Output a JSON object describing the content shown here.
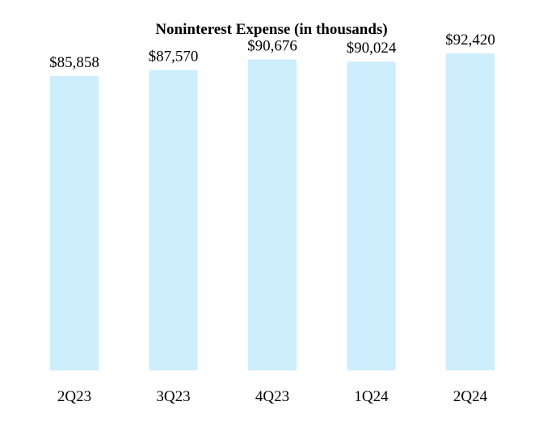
{
  "chart_data": {
    "type": "bar",
    "title": "Noninterest Expense (in thousands)",
    "categories": [
      "2Q23",
      "3Q23",
      "4Q23",
      "1Q24",
      "2Q24"
    ],
    "values": [
      85858,
      87570,
      90676,
      90024,
      92420
    ],
    "data_labels": [
      "$85,858",
      "$87,570",
      "$90,676",
      "$90,024",
      "$92,420"
    ],
    "xlabel": "",
    "ylabel": "",
    "ylim": [
      0,
      108000
    ],
    "grid": false,
    "legend": "none",
    "colors": {
      "bar": "#cdeefc",
      "text": "#000000"
    }
  }
}
